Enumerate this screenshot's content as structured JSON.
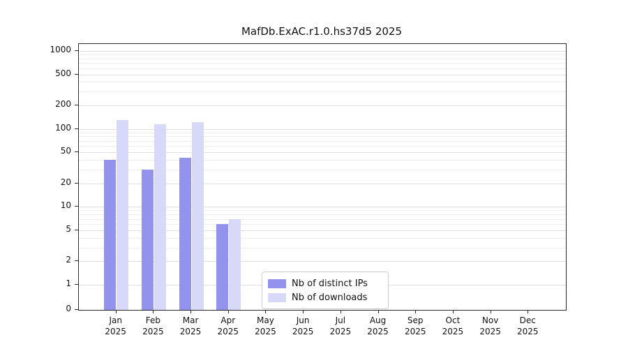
{
  "chart_data": {
    "type": "bar",
    "title": "MafDb.ExAC.r1.0.hs37d5 2025",
    "x_months": [
      "Jan",
      "Feb",
      "Mar",
      "Apr",
      "May",
      "Jun",
      "Jul",
      "Aug",
      "Sep",
      "Oct",
      "Nov",
      "Dec"
    ],
    "x_year": "2025",
    "y_ticks": [
      0,
      1,
      2,
      5,
      10,
      20,
      50,
      100,
      200,
      500,
      1000
    ],
    "y_scale": "log",
    "ylim": [
      0,
      1200
    ],
    "grid": "horizontal",
    "series": [
      {
        "name": "Nb of distinct IPs",
        "color": "#9393ee",
        "values": [
          40,
          30,
          43,
          6,
          0,
          0,
          0,
          0,
          0,
          0,
          0,
          0
        ]
      },
      {
        "name": "Nb of downloads",
        "color": "#d8d8f8",
        "values": [
          130,
          115,
          122,
          7,
          0,
          0,
          0,
          0,
          0,
          0,
          0,
          0
        ]
      }
    ],
    "legend": {
      "position": "bottom-center",
      "labels": [
        "Nb of distinct IPs",
        "Nb of downloads"
      ]
    }
  }
}
